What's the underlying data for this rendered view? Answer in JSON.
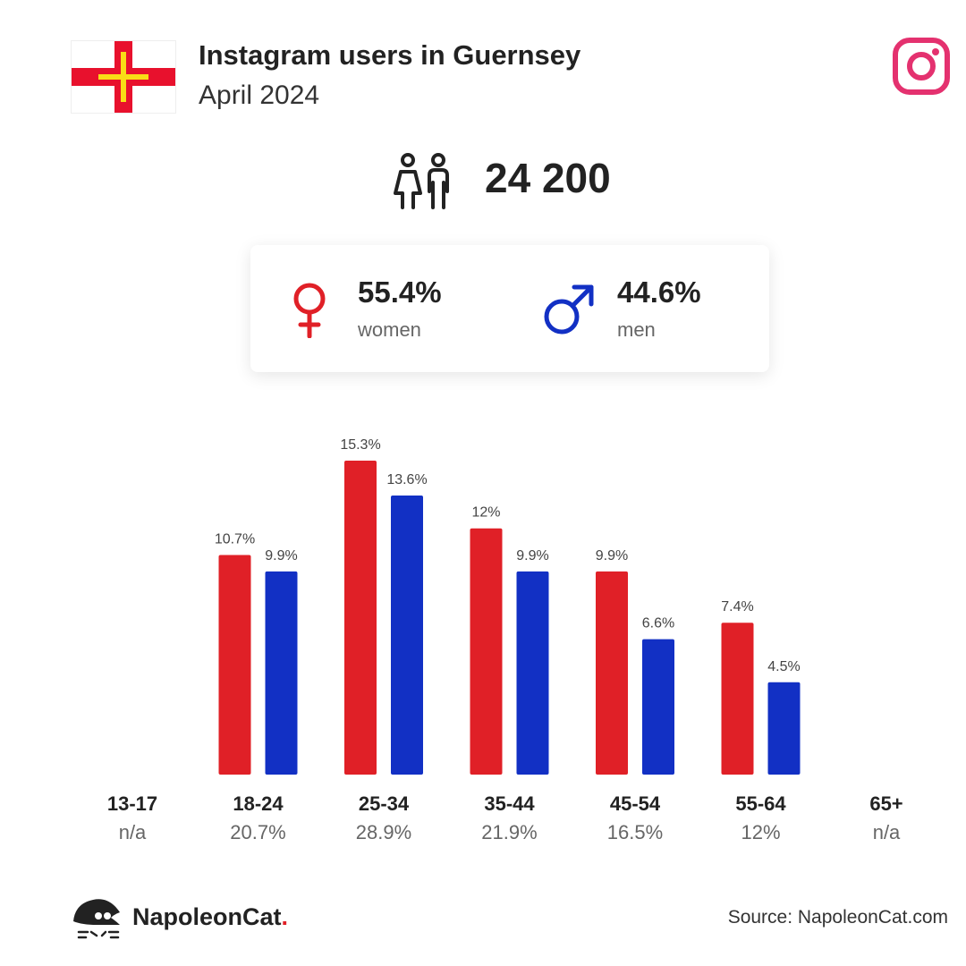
{
  "header": {
    "title": "Instagram users in Guernsey",
    "subtitle": "April 2024"
  },
  "total_users": "24 200",
  "gender": {
    "women": {
      "pct": "55.4%",
      "label": "women",
      "color": "#e02027"
    },
    "men": {
      "pct": "44.6%",
      "label": "men",
      "color": "#1230c4"
    }
  },
  "chart_data": {
    "type": "bar",
    "categories": [
      "13-17",
      "18-24",
      "25-34",
      "35-44",
      "45-54",
      "55-64",
      "65+"
    ],
    "category_totals": [
      "n/a",
      "20.7%",
      "28.9%",
      "21.9%",
      "16.5%",
      "12%",
      "n/a"
    ],
    "series": [
      {
        "color": "#e02027",
        "values": [
          null,
          10.7,
          15.3,
          12,
          9.9,
          7.4,
          null
        ],
        "labels": [
          "",
          "10.7%",
          "15.3%",
          "12%",
          "9.9%",
          "7.4%",
          ""
        ]
      },
      {
        "color": "#1230c4",
        "values": [
          null,
          9.9,
          13.6,
          9.9,
          6.6,
          4.5,
          null
        ],
        "labels": [
          "",
          "9.9%",
          "13.6%",
          "9.9%",
          "6.6%",
          "4.5%",
          ""
        ]
      }
    ],
    "ylim": [
      0,
      15.3
    ]
  },
  "footer": {
    "brand": "NapoleonCat",
    "brand_dot": ".",
    "source": "Source: NapoleonCat.com"
  }
}
